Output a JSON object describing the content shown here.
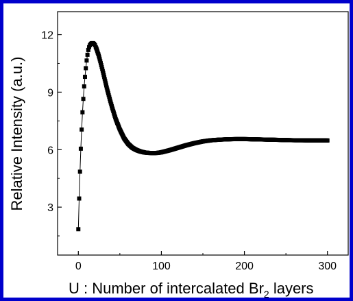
{
  "colors": {
    "frame": "#0000cc",
    "marker": "#000000",
    "line": "#000000"
  },
  "chart_data": {
    "type": "scatter",
    "title": "",
    "xlabel_main": "U : Number of intercalated Br",
    "xlabel_sub": "2",
    "xlabel_tail": " layers",
    "ylabel": "Relative Intensity (a.u.)",
    "xlim": [
      -25,
      325
    ],
    "ylim": [
      0.5,
      13.2
    ],
    "x_ticks": [
      0,
      100,
      200,
      300
    ],
    "x_tick_labels": [
      "0",
      "100",
      "200",
      "300"
    ],
    "y_ticks": [
      3,
      6,
      9,
      12
    ],
    "y_tick_labels": [
      "3",
      "6",
      "9",
      "12"
    ],
    "grid": false,
    "legend": "none",
    "series": [
      {
        "marker": "square",
        "connected": true,
        "description_points": [
          [
            0,
            1.85
          ],
          [
            1,
            3.45
          ],
          [
            2,
            4.85
          ],
          [
            3,
            6.05
          ],
          [
            4,
            7.05
          ],
          [
            5,
            7.95
          ],
          [
            6,
            8.65
          ],
          [
            7,
            9.3
          ],
          [
            8,
            9.8
          ],
          [
            9,
            10.25
          ],
          [
            10,
            10.65
          ],
          [
            11,
            10.95
          ],
          [
            12,
            11.2
          ],
          [
            13,
            11.35
          ],
          [
            14,
            11.45
          ],
          [
            15,
            11.52
          ],
          [
            16,
            11.55
          ],
          [
            17,
            11.56
          ],
          [
            18,
            11.55
          ],
          [
            19,
            11.52
          ],
          [
            20,
            11.45
          ],
          [
            22,
            11.25
          ],
          [
            25,
            10.85
          ],
          [
            30,
            10.0
          ],
          [
            35,
            9.1
          ],
          [
            40,
            8.3
          ],
          [
            45,
            7.6
          ],
          [
            50,
            7.05
          ],
          [
            55,
            6.6
          ],
          [
            60,
            6.3
          ],
          [
            65,
            6.1
          ],
          [
            70,
            5.98
          ],
          [
            75,
            5.9
          ],
          [
            80,
            5.85
          ],
          [
            85,
            5.83
          ],
          [
            90,
            5.82
          ],
          [
            95,
            5.83
          ],
          [
            100,
            5.86
          ],
          [
            110,
            5.97
          ],
          [
            120,
            6.1
          ],
          [
            130,
            6.23
          ],
          [
            140,
            6.34
          ],
          [
            150,
            6.43
          ],
          [
            160,
            6.49
          ],
          [
            170,
            6.52
          ],
          [
            180,
            6.54
          ],
          [
            190,
            6.55
          ],
          [
            200,
            6.55
          ],
          [
            210,
            6.54
          ],
          [
            220,
            6.53
          ],
          [
            230,
            6.52
          ],
          [
            240,
            6.51
          ],
          [
            250,
            6.5
          ],
          [
            260,
            6.49
          ],
          [
            270,
            6.49
          ],
          [
            280,
            6.48
          ],
          [
            290,
            6.48
          ],
          [
            300,
            6.48
          ]
        ]
      }
    ]
  }
}
